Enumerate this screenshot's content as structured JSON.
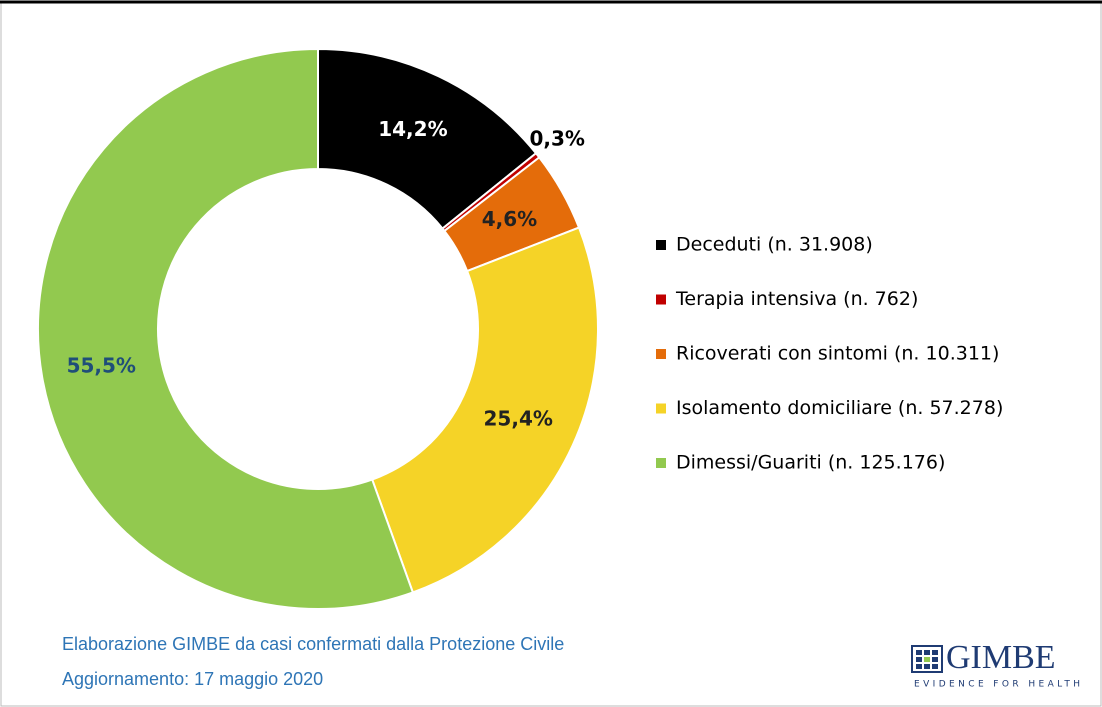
{
  "chart_data": {
    "type": "donut",
    "categories": [
      "Deceduti (n. 31.908)",
      "Terapia intensiva (n. 762)",
      "Ricoverati con sintomi (n. 10.311)",
      "Isolamento domiciliare (n. 57.278)",
      "Dimessi/Guariti (n. 125.176)"
    ],
    "values": [
      14.2,
      0.3,
      4.6,
      25.4,
      55.5
    ],
    "value_labels": [
      "14,2%",
      "0,3%",
      "4,6%",
      "25,4%",
      "55,5%"
    ],
    "colors": [
      "#000000",
      "#c00000",
      "#e46c0a",
      "#f5d327",
      "#92c94f"
    ],
    "legend": "right",
    "footnotes": [
      "Elaborazione GIMBE da casi confermati dalla Protezione Civile",
      "Aggiornamento: 17 maggio 2020"
    ],
    "logo": {
      "name": "GIMBE",
      "tagline": "EVIDENCE FOR HEALTH"
    }
  }
}
